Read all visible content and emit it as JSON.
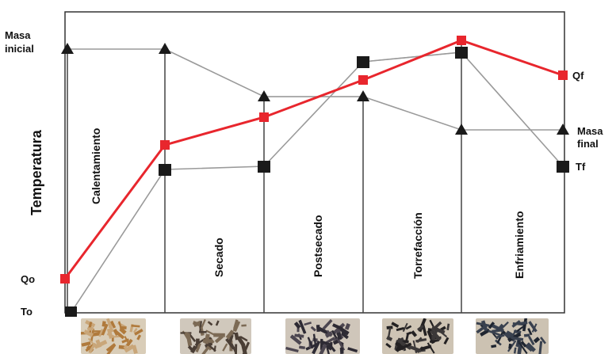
{
  "labels": {
    "masa_inicial_1": "Masa",
    "masa_inicial_2": "inicial",
    "masa_final_1": "Masa",
    "masa_final_2": "final",
    "temperatura": "Temperatura",
    "qo": "Qo",
    "to": "To",
    "qf": "Qf",
    "tf": "Tf"
  },
  "stages": [
    "Calentamiento",
    "Secado",
    "Postsecado",
    "Torrefacción",
    "Enfriamiento"
  ],
  "colors": {
    "heat_line": "#e8262d",
    "gray_line": "#9a9a9a",
    "marker": "#1a1a1a",
    "frame": "#333333"
  },
  "photos": [
    {
      "name": "raw-chips",
      "base": "#c9a679",
      "chip": "#b07a3c",
      "bg": "#d9cdb8"
    },
    {
      "name": "dried-chips",
      "base": "#7c6a55",
      "chip": "#4a3e35",
      "bg": "#d0c8bc"
    },
    {
      "name": "postdried-chips",
      "base": "#4c4650",
      "chip": "#2d2a33",
      "bg": "#cfc6ba"
    },
    {
      "name": "torrefied-chips",
      "base": "#3b3838",
      "chip": "#232122",
      "bg": "#cec4b4"
    },
    {
      "name": "cooled-chips",
      "base": "#39414f",
      "chip": "#1f2530",
      "bg": "#ccc2b2"
    }
  ]
}
